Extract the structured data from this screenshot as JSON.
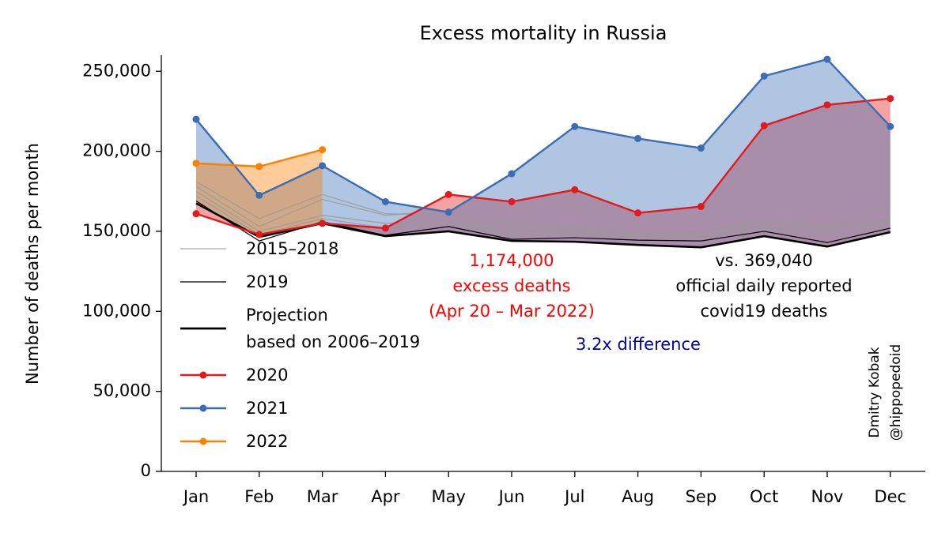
{
  "chart_data": {
    "type": "line",
    "title": "Excess mortality in Russia",
    "y_label": "Number of deaths per month",
    "categories": [
      "Jan",
      "Feb",
      "Mar",
      "Apr",
      "May",
      "Jun",
      "Jul",
      "Aug",
      "Sep",
      "Oct",
      "Nov",
      "Dec"
    ],
    "ylim": [
      0,
      260000
    ],
    "yticks": [
      0,
      {
        "value": 50000,
        "label": "50,000"
      },
      {
        "value": 100000,
        "label": "100,000"
      },
      {
        "value": 150000,
        "label": "150,000"
      },
      {
        "value": 200000,
        "label": "200,000"
      },
      {
        "value": 250000,
        "label": "250,000"
      }
    ],
    "series": [
      {
        "name": "2015–2018",
        "color": "#999999",
        "values": [
          [
            181000,
            158000,
            173000,
            161000,
            160000,
            150000,
            152000,
            150000,
            149000,
            156000,
            152000,
            167000
          ],
          [
            178000,
            153000,
            170000,
            160000,
            163000,
            155000,
            153000,
            148000,
            149000,
            158000,
            153000,
            158000
          ],
          [
            175000,
            150000,
            160000,
            155000,
            156000,
            150000,
            150000,
            148000,
            147000,
            153000,
            151000,
            157000
          ],
          [
            172000,
            148000,
            158000,
            152000,
            155000,
            148000,
            149000,
            146000,
            146000,
            152000,
            148000,
            156000
          ]
        ]
      },
      {
        "name": "2019",
        "color": "#000000",
        "values": [
          169000,
          144000,
          156000,
          147500,
          153000,
          145000,
          146000,
          144500,
          144000,
          150000,
          143000,
          152000
        ]
      },
      {
        "name": "Projection\nbased on 2006–2019",
        "color": "#000000",
        "values": [
          167500,
          146500,
          155000,
          147000,
          150000,
          144000,
          143500,
          141500,
          140000,
          147000,
          140500,
          149500
        ]
      },
      {
        "name": "2020",
        "color": "#e31a1c",
        "markers": true,
        "fill": true,
        "values": [
          161000,
          148000,
          155000,
          152000,
          173000,
          168500,
          176000,
          161500,
          165500,
          216000,
          229000,
          233000
        ]
      },
      {
        "name": "2021",
        "color": "#3a6db5",
        "markers": true,
        "fill": true,
        "values": [
          220000,
          172500,
          191000,
          168500,
          162000,
          186000,
          215500,
          208000,
          202000,
          247000,
          257500,
          215500
        ]
      },
      {
        "name": "2022",
        "color": "#ff7f00",
        "markers": true,
        "fill": true,
        "values": [
          192500,
          190500,
          201000,
          null,
          null,
          null,
          null,
          null,
          null,
          null,
          null,
          null
        ]
      }
    ],
    "annotations": [
      {
        "text": "1,174,000\nexcess deaths\n(Apr 20 – Mar 2022)",
        "color": "#ff0000"
      },
      {
        "text": "vs. 369,040\nofficial daily reported\ncovid19 deaths",
        "color": "#000000"
      },
      {
        "text": "3.2x difference",
        "color": "#0000aa"
      }
    ],
    "credit": "Dmitry Kobak\n@hippopedoid"
  }
}
